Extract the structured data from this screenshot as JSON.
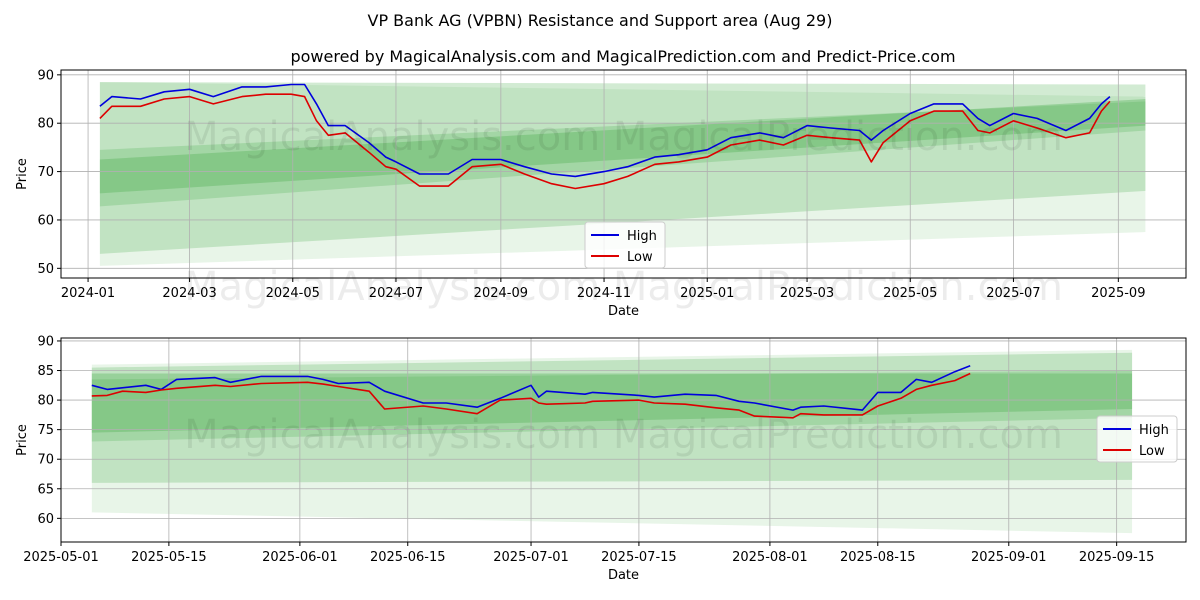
{
  "title": "VP Bank AG (VPBN) Resistance and Support area (Aug 29)",
  "subtitle": "powered by MagicalAnalysis.com and MagicalPrediction.com and Predict-Price.com",
  "watermarks": [
    "MagicalAnalysis.com",
    "MagicalPrediction.com"
  ],
  "colors": {
    "high": "#0000dd",
    "low": "#dd0000",
    "band": "#4caf50"
  },
  "chart_data": [
    {
      "type": "line",
      "xlabel": "Date",
      "ylabel": "Price",
      "xlim": [
        "2023-12-16",
        "2025-10-11"
      ],
      "ylim": [
        48,
        91
      ],
      "x_ticks": [
        "2024-01",
        "2024-03",
        "2024-05",
        "2024-07",
        "2024-09",
        "2024-11",
        "2025-01",
        "2025-03",
        "2025-05",
        "2025-07",
        "2025-09"
      ],
      "y_ticks": [
        50,
        60,
        70,
        80,
        90
      ],
      "grid": true,
      "legend": {
        "position": "bottom-center",
        "entries": [
          "High",
          "Low"
        ]
      },
      "bands": [
        {
          "x": [
            "2024-01-08",
            "2025-09-17"
          ],
          "upper": [
            88.5,
            85.5
          ],
          "lower": [
            50.5,
            57.5
          ],
          "opacity": 0.13
        },
        {
          "x": [
            "2024-01-08",
            "2025-09-17"
          ],
          "upper": [
            88.5,
            88.0
          ],
          "lower": [
            53.0,
            66.0
          ],
          "opacity": 0.25
        },
        {
          "x": [
            "2024-01-08",
            "2025-09-17"
          ],
          "upper": [
            74.5,
            84.5
          ],
          "lower": [
            62.8,
            78.5
          ],
          "opacity": 0.25
        },
        {
          "x": [
            "2024-01-08",
            "2025-09-17"
          ],
          "upper": [
            72.5,
            85.0
          ],
          "lower": [
            65.5,
            79.5
          ],
          "opacity": 0.35
        }
      ],
      "series": [
        {
          "name": "High",
          "x": [
            "2024-01-08",
            "2024-01-15",
            "2024-02-01",
            "2024-02-15",
            "2024-03-01",
            "2024-03-15",
            "2024-04-01",
            "2024-04-15",
            "2024-04-30",
            "2024-05-08",
            "2024-05-15",
            "2024-05-22",
            "2024-06-01",
            "2024-06-15",
            "2024-06-25",
            "2024-07-01",
            "2024-07-15",
            "2024-08-01",
            "2024-08-15",
            "2024-09-01",
            "2024-09-15",
            "2024-10-01",
            "2024-10-15",
            "2024-11-01",
            "2024-11-15",
            "2024-12-01",
            "2024-12-15",
            "2025-01-01",
            "2025-01-15",
            "2025-02-01",
            "2025-02-15",
            "2025-03-01",
            "2025-03-15",
            "2025-04-01",
            "2025-04-08",
            "2025-04-15",
            "2025-05-01",
            "2025-05-15",
            "2025-06-01",
            "2025-06-10",
            "2025-06-17",
            "2025-07-01",
            "2025-07-15",
            "2025-08-01",
            "2025-08-15",
            "2025-08-22",
            "2025-08-27"
          ],
          "values": [
            83.5,
            85.5,
            85.0,
            86.5,
            87.0,
            85.5,
            87.5,
            87.5,
            88.0,
            88.0,
            84.0,
            79.5,
            79.5,
            76.0,
            73.0,
            72.0,
            69.5,
            69.5,
            72.5,
            72.5,
            71.0,
            69.5,
            69.0,
            70.0,
            71.0,
            73.0,
            73.5,
            74.5,
            77.0,
            78.0,
            77.0,
            79.5,
            79.0,
            78.5,
            76.5,
            78.5,
            82.0,
            84.0,
            84.0,
            81.0,
            79.5,
            82.0,
            81.0,
            78.5,
            81.0,
            84.0,
            85.5
          ]
        },
        {
          "name": "Low",
          "x": [
            "2024-01-08",
            "2024-01-15",
            "2024-02-01",
            "2024-02-15",
            "2024-03-01",
            "2024-03-15",
            "2024-04-01",
            "2024-04-15",
            "2024-04-30",
            "2024-05-08",
            "2024-05-15",
            "2024-05-22",
            "2024-06-01",
            "2024-06-15",
            "2024-06-25",
            "2024-07-01",
            "2024-07-15",
            "2024-08-01",
            "2024-08-15",
            "2024-09-01",
            "2024-09-15",
            "2024-10-01",
            "2024-10-15",
            "2024-11-01",
            "2024-11-15",
            "2024-12-01",
            "2024-12-15",
            "2025-01-01",
            "2025-01-15",
            "2025-02-01",
            "2025-02-15",
            "2025-03-01",
            "2025-03-15",
            "2025-04-01",
            "2025-04-08",
            "2025-04-15",
            "2025-05-01",
            "2025-05-15",
            "2025-06-01",
            "2025-06-10",
            "2025-06-17",
            "2025-07-01",
            "2025-07-15",
            "2025-08-01",
            "2025-08-15",
            "2025-08-22",
            "2025-08-27"
          ],
          "values": [
            81.0,
            83.5,
            83.5,
            85.0,
            85.5,
            84.0,
            85.5,
            86.0,
            86.0,
            85.5,
            80.5,
            77.5,
            78.0,
            74.0,
            71.0,
            70.5,
            67.0,
            67.0,
            71.0,
            71.5,
            69.5,
            67.5,
            66.5,
            67.5,
            69.0,
            71.5,
            72.0,
            73.0,
            75.5,
            76.5,
            75.5,
            77.5,
            77.0,
            76.5,
            72.0,
            76.0,
            80.5,
            82.5,
            82.5,
            78.5,
            78.0,
            80.5,
            79.0,
            77.0,
            78.0,
            82.5,
            84.5
          ]
        }
      ]
    },
    {
      "type": "line",
      "xlabel": "Date",
      "ylabel": "Price",
      "xlim": [
        "2025-05-01",
        "2025-09-24"
      ],
      "ylim": [
        56,
        90.5
      ],
      "x_ticks": [
        "2025-05-01",
        "2025-05-15",
        "2025-06-01",
        "2025-06-15",
        "2025-07-01",
        "2025-07-15",
        "2025-08-01",
        "2025-08-15",
        "2025-09-01",
        "2025-09-15"
      ],
      "y_ticks": [
        60,
        65,
        70,
        75,
        80,
        85,
        90
      ],
      "grid": true,
      "legend": {
        "position": "center-right",
        "entries": [
          "High",
          "Low"
        ]
      },
      "bands": [
        {
          "x": [
            "2025-05-05",
            "2025-09-17"
          ],
          "upper": [
            86.0,
            88.5
          ],
          "lower": [
            61.0,
            57.5
          ],
          "opacity": 0.13
        },
        {
          "x": [
            "2025-05-05",
            "2025-09-17"
          ],
          "upper": [
            85.5,
            88.0
          ],
          "lower": [
            66.0,
            66.5
          ],
          "opacity": 0.25
        },
        {
          "x": [
            "2025-05-05",
            "2025-09-17"
          ],
          "upper": [
            83.5,
            85.0
          ],
          "lower": [
            73.0,
            77.0
          ],
          "opacity": 0.25
        },
        {
          "x": [
            "2025-05-05",
            "2025-09-17"
          ],
          "upper": [
            84.5,
            84.5
          ],
          "lower": [
            74.5,
            78.5
          ],
          "opacity": 0.35
        }
      ],
      "series": [
        {
          "name": "High",
          "x": [
            "2025-05-05",
            "2025-05-07",
            "2025-05-12",
            "2025-05-14",
            "2025-05-16",
            "2025-05-21",
            "2025-05-23",
            "2025-05-27",
            "2025-06-02",
            "2025-06-04",
            "2025-06-06",
            "2025-06-10",
            "2025-06-12",
            "2025-06-17",
            "2025-06-20",
            "2025-06-24",
            "2025-06-27",
            "2025-07-01",
            "2025-07-02",
            "2025-07-03",
            "2025-07-08",
            "2025-07-09",
            "2025-07-15",
            "2025-07-17",
            "2025-07-21",
            "2025-07-25",
            "2025-07-28",
            "2025-07-30",
            "2025-08-04",
            "2025-08-05",
            "2025-08-08",
            "2025-08-13",
            "2025-08-15",
            "2025-08-18",
            "2025-08-20",
            "2025-08-22",
            "2025-08-25",
            "2025-08-27"
          ],
          "values": [
            82.5,
            81.8,
            82.5,
            81.8,
            83.5,
            83.8,
            83.0,
            84.0,
            84.0,
            83.5,
            82.8,
            83.0,
            81.5,
            79.5,
            79.5,
            78.8,
            80.3,
            82.5,
            80.5,
            81.5,
            81.0,
            81.3,
            80.8,
            80.5,
            81.0,
            80.8,
            79.8,
            79.5,
            78.3,
            78.8,
            79.0,
            78.3,
            81.3,
            81.3,
            83.5,
            83.0,
            84.8,
            85.8
          ]
        },
        {
          "name": "Low",
          "x": [
            "2025-05-05",
            "2025-05-07",
            "2025-05-09",
            "2025-05-12",
            "2025-05-14",
            "2025-05-16",
            "2025-05-21",
            "2025-05-23",
            "2025-05-27",
            "2025-06-02",
            "2025-06-04",
            "2025-06-06",
            "2025-06-10",
            "2025-06-12",
            "2025-06-17",
            "2025-06-20",
            "2025-06-24",
            "2025-06-27",
            "2025-07-01",
            "2025-07-02",
            "2025-07-03",
            "2025-07-08",
            "2025-07-09",
            "2025-07-15",
            "2025-07-17",
            "2025-07-21",
            "2025-07-25",
            "2025-07-28",
            "2025-07-30",
            "2025-08-04",
            "2025-08-05",
            "2025-08-08",
            "2025-08-13",
            "2025-08-15",
            "2025-08-18",
            "2025-08-20",
            "2025-08-22",
            "2025-08-25",
            "2025-08-27"
          ],
          "values": [
            80.7,
            80.8,
            81.5,
            81.3,
            81.7,
            82.0,
            82.5,
            82.3,
            82.8,
            83.0,
            82.7,
            82.3,
            81.5,
            78.5,
            79.0,
            78.5,
            77.7,
            80.0,
            80.3,
            79.5,
            79.3,
            79.5,
            79.8,
            80.0,
            79.5,
            79.3,
            78.7,
            78.3,
            77.3,
            77.0,
            77.7,
            77.5,
            77.5,
            79.0,
            80.3,
            81.8,
            82.5,
            83.3,
            84.5
          ]
        }
      ]
    }
  ]
}
